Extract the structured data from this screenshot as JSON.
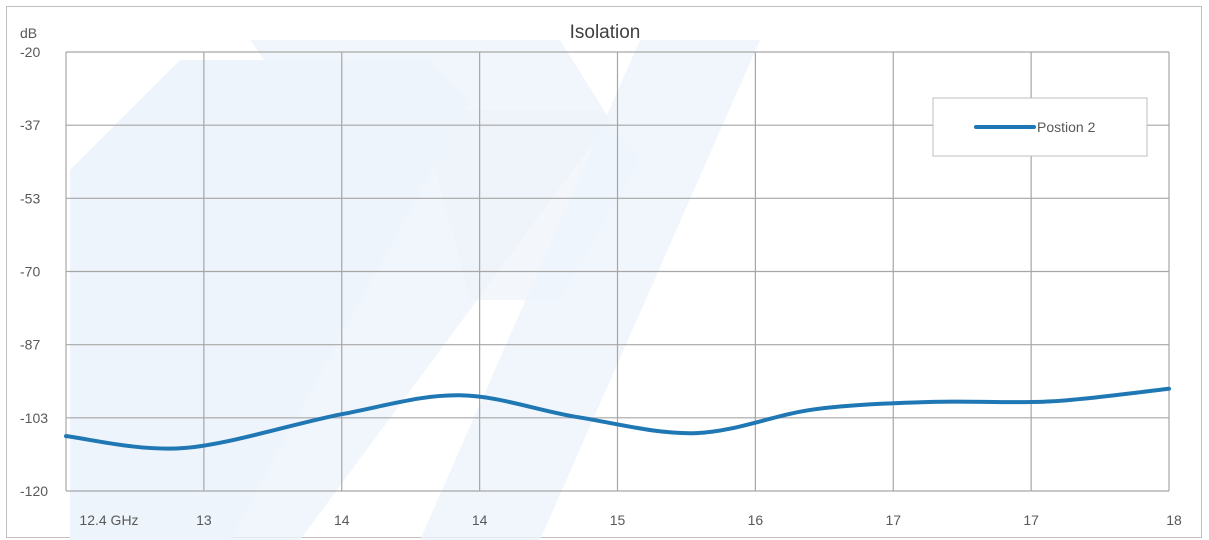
{
  "chart_data": {
    "type": "line",
    "title": "Isolation",
    "ylabel": "dB",
    "xlabel": "",
    "x_tick_labels": [
      "12.4 GHz",
      "13",
      "14",
      "14",
      "15",
      "16",
      "17",
      "17",
      "18"
    ],
    "y_ticks": [
      -20,
      -37,
      -53,
      -70,
      -87,
      -103,
      -120
    ],
    "ylim": [
      -120,
      -20
    ],
    "grid": true,
    "legend_position": "top-right",
    "series": [
      {
        "name": "Postion 2",
        "color": "#1f77b4",
        "x": [
          12.4,
          13.0,
          13.8,
          14.4,
          15.0,
          15.6,
          16.2,
          16.8,
          17.4,
          18.0
        ],
        "values": [
          -107.5,
          -110.2,
          -102.5,
          -98.2,
          -103.2,
          -106.8,
          -101.4,
          -99.7,
          -99.6,
          -96.7
        ]
      }
    ]
  }
}
